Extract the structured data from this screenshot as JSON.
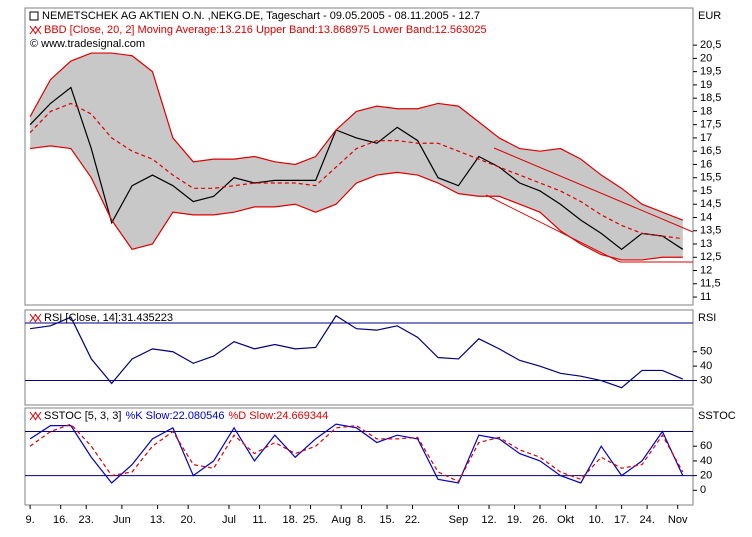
{
  "chart_data": [
    {
      "type": "line",
      "title": "NEMETSCHEK AG AKTIEN O.N. ,NEKG.DE, Tageschart - 09.05.2005 - 08.11.2005 - 12.7",
      "subtitle": "BBD [Close, 20, 2] Moving Average:13.216 Upper Band:13.868975 Lower Band:12.563025",
      "source": "© www.tradesignal.com",
      "y_axis_label": "EUR",
      "x": [
        0,
        4,
        8,
        12,
        16,
        20,
        24,
        28,
        32,
        36,
        40,
        44,
        48,
        52,
        56,
        60,
        64,
        68,
        72,
        76,
        80,
        84,
        88,
        92,
        96,
        100,
        104,
        108,
        112,
        116,
        120,
        124,
        128
      ],
      "xlim": [
        -1,
        130
      ],
      "ylim": [
        10.7,
        21.9
      ],
      "yticks": [
        11,
        {
          "value": 11.5,
          "label": "11,5"
        },
        12,
        {
          "value": 12.5,
          "label": "12,5"
        },
        13,
        {
          "value": 13.5,
          "label": "13,5"
        },
        14,
        {
          "value": 14.5,
          "label": "14,5"
        },
        15,
        {
          "value": 15.5,
          "label": "15,5"
        },
        16,
        {
          "value": 16.5,
          "label": "16,5"
        },
        17,
        {
          "value": 17.5,
          "label": "17,5"
        },
        18,
        {
          "value": 18.5,
          "label": "18,5"
        },
        19,
        {
          "value": 19.5,
          "label": "19,5"
        },
        20,
        {
          "value": 20.5,
          "label": "20,5"
        }
      ],
      "series": [
        {
          "color": "#000000",
          "values": [
            17.5,
            18.3,
            18.9,
            16.6,
            13.8,
            15.2,
            15.6,
            15.2,
            14.6,
            14.8,
            15.5,
            15.3,
            15.4,
            15.4,
            15.4,
            17.3,
            17.0,
            16.8,
            17.4,
            16.9,
            15.5,
            15.2,
            16.3,
            15.9,
            15.3,
            15.0,
            14.5,
            13.9,
            13.4,
            12.8,
            13.4,
            13.3,
            12.8
          ]
        },
        {
          "color": "#dd0000",
          "values": [
            17.8,
            19.2,
            19.9,
            20.2,
            20.2,
            20.1,
            19.5,
            17.0,
            16.1,
            16.2,
            16.2,
            16.3,
            16.1,
            16.0,
            16.3,
            17.3,
            18.0,
            18.2,
            18.1,
            18.1,
            18.3,
            18.2,
            17.6,
            17.0,
            16.6,
            16.5,
            16.6,
            16.2,
            15.6,
            15.1,
            14.5,
            14.2,
            13.9
          ]
        },
        {
          "color": "#dd0000",
          "values": [
            16.6,
            16.7,
            16.6,
            15.5,
            13.9,
            12.8,
            13.0,
            14.2,
            14.1,
            14.1,
            14.2,
            14.4,
            14.4,
            14.5,
            14.2,
            14.5,
            15.3,
            15.6,
            15.7,
            15.6,
            15.3,
            14.9,
            14.8,
            14.8,
            14.5,
            14.2,
            13.5,
            13.0,
            12.6,
            12.4,
            12.4,
            12.5,
            12.5
          ]
        },
        {
          "color": "#dd0000",
          "dashed": true,
          "values": [
            17.2,
            18.0,
            18.3,
            17.9,
            17.0,
            16.5,
            16.2,
            15.6,
            15.1,
            15.1,
            15.2,
            15.3,
            15.3,
            15.3,
            15.2,
            15.9,
            16.6,
            16.9,
            16.9,
            16.8,
            16.8,
            16.5,
            16.2,
            15.9,
            15.6,
            15.3,
            15.0,
            14.6,
            14.1,
            13.7,
            13.4,
            13.3,
            13.2
          ]
        }
      ],
      "band_fill": "#c8c8c8"
    },
    {
      "type": "line",
      "y_axis_label": "RSI",
      "x": [
        0,
        4,
        8,
        12,
        16,
        20,
        24,
        28,
        32,
        36,
        40,
        44,
        48,
        52,
        56,
        60,
        64,
        68,
        72,
        76,
        80,
        84,
        88,
        92,
        96,
        100,
        104,
        108,
        112,
        116,
        120,
        124,
        128
      ],
      "xlim": [
        -1,
        130
      ],
      "ylim": [
        13,
        79
      ],
      "yticks": [
        30,
        40,
        50
      ],
      "reference_lines": [
        70,
        30
      ],
      "series": [
        {
          "name": "RSI [Close, 14]:31.435223",
          "color": "#000080",
          "values": [
            66,
            68,
            74,
            45,
            28,
            45,
            52,
            50,
            42,
            47,
            57,
            52,
            55,
            52,
            53,
            75,
            66,
            65,
            68,
            60,
            46,
            45,
            59,
            52,
            44,
            40,
            35,
            33,
            30,
            25,
            37,
            37,
            31
          ]
        }
      ]
    },
    {
      "type": "line",
      "title": "SSTOC [5, 3, 3]",
      "y_axis_label": "SSTOC",
      "x": [
        0,
        4,
        8,
        12,
        16,
        20,
        24,
        28,
        32,
        36,
        40,
        44,
        48,
        52,
        56,
        60,
        64,
        68,
        72,
        76,
        80,
        84,
        88,
        92,
        96,
        100,
        104,
        108,
        112,
        116,
        120,
        124,
        128
      ],
      "xlim": [
        -1,
        130
      ],
      "ylim": [
        -20,
        112
      ],
      "yticks": [
        0,
        20,
        40,
        60
      ],
      "reference_lines": [
        80,
        20
      ],
      "xticks": [
        {
          "value": 0,
          "label": "9."
        },
        {
          "value": 6,
          "label": "16."
        },
        {
          "value": 11,
          "label": "23."
        },
        {
          "value": 18,
          "label": "Jun"
        },
        {
          "value": 25,
          "label": "13."
        },
        {
          "value": 31,
          "label": "20."
        },
        {
          "value": 39,
          "label": "Jul"
        },
        {
          "value": 45,
          "label": "11."
        },
        {
          "value": 51,
          "label": "18."
        },
        {
          "value": 55,
          "label": "25."
        },
        {
          "value": 61,
          "label": "Aug"
        },
        {
          "value": 65,
          "label": "8."
        },
        {
          "value": 70,
          "label": "15."
        },
        {
          "value": 75,
          "label": "22."
        },
        {
          "value": 84,
          "label": "Sep"
        },
        {
          "value": 90,
          "label": "12."
        },
        {
          "value": 95,
          "label": "19."
        },
        {
          "value": 100,
          "label": "26."
        },
        {
          "value": 105,
          "label": "Okt"
        },
        {
          "value": 111,
          "label": "10."
        },
        {
          "value": 116,
          "label": "17."
        },
        {
          "value": 121,
          "label": "24."
        },
        {
          "value": 127,
          "label": "Nov"
        }
      ],
      "series": [
        {
          "name": "%K Slow:22.080546",
          "color": "#0000cc",
          "values": [
            70,
            88,
            88,
            45,
            10,
            35,
            70,
            85,
            20,
            40,
            85,
            40,
            75,
            45,
            70,
            90,
            85,
            65,
            75,
            70,
            15,
            10,
            75,
            70,
            50,
            40,
            20,
            10,
            60,
            20,
            40,
            80,
            20
          ]
        },
        {
          "name": "%D Slow:24.669344",
          "color": "#dd0000",
          "dashed": true,
          "values": [
            60,
            80,
            90,
            60,
            20,
            25,
            60,
            80,
            35,
            30,
            75,
            50,
            65,
            50,
            60,
            85,
            88,
            70,
            70,
            72,
            25,
            12,
            65,
            72,
            55,
            45,
            25,
            15,
            45,
            30,
            35,
            75,
            25
          ]
        }
      ]
    }
  ]
}
